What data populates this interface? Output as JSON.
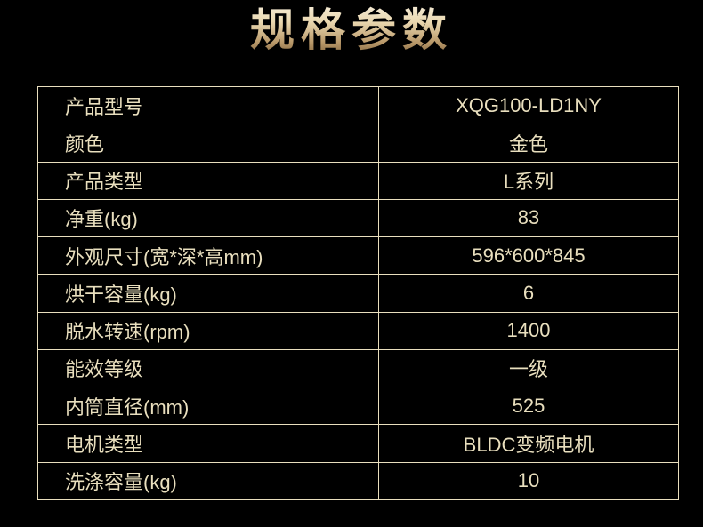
{
  "page": {
    "background_color": "#000000"
  },
  "header": {
    "title": "规格参数",
    "title_gradient_top": "#f8f1e2",
    "title_gradient_mid": "#ead8b0",
    "title_gradient_bottom": "#8a6c43"
  },
  "spec_table": {
    "border_color": "#e9dfbe",
    "text_color": "#e9dfbe",
    "columns": [
      "label",
      "value"
    ],
    "rows": [
      {
        "label": "产品型号",
        "value": "XQG100-LD1NY"
      },
      {
        "label": "颜色",
        "value": "金色"
      },
      {
        "label": "产品类型",
        "value": "L系列"
      },
      {
        "label": "净重(kg)",
        "value": "83"
      },
      {
        "label": "外观尺寸(宽*深*高mm)",
        "value": "596*600*845"
      },
      {
        "label": "烘干容量(kg)",
        "value": "6"
      },
      {
        "label": "脱水转速(rpm)",
        "value": "1400"
      },
      {
        "label": "能效等级",
        "value": "一级"
      },
      {
        "label": "内筒直径(mm)",
        "value": "525"
      },
      {
        "label": "电机类型",
        "value": "BLDC变频电机"
      },
      {
        "label": "洗涤容量(kg)",
        "value": "10"
      }
    ]
  }
}
